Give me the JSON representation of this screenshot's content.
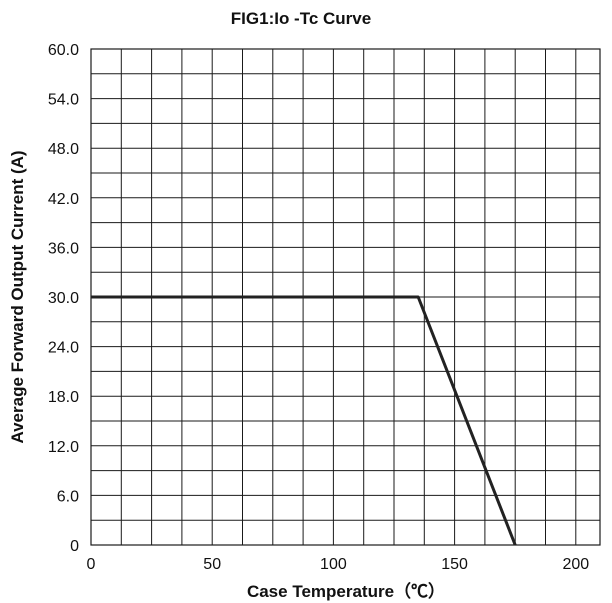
{
  "chart_data": {
    "type": "line",
    "title": "FIG1:Io -Tc Curve",
    "xlabel": "Case Temperature（℃）",
    "ylabel": "Average Forward Output Current (A)",
    "xlim": [
      0,
      210
    ],
    "ylim": [
      0,
      60
    ],
    "x_ticks": [
      0,
      50,
      100,
      150,
      200
    ],
    "x_tick_labels": [
      "0",
      "50",
      "100",
      "150",
      "200"
    ],
    "y_ticks": [
      0,
      6,
      12,
      18,
      24,
      30,
      36,
      42,
      48,
      54,
      60
    ],
    "y_tick_labels": [
      "0",
      "6.0",
      "12.0",
      "18.0",
      "24.0",
      "30.0",
      "36.0",
      "42.0",
      "48.0",
      "54.0",
      "60.0"
    ],
    "grid": true,
    "grid_x_step": 12.5,
    "grid_y_step": 3,
    "series": [
      {
        "x": [
          0,
          135,
          175
        ],
        "y": [
          30,
          30,
          0
        ],
        "color": "#222222"
      }
    ]
  }
}
